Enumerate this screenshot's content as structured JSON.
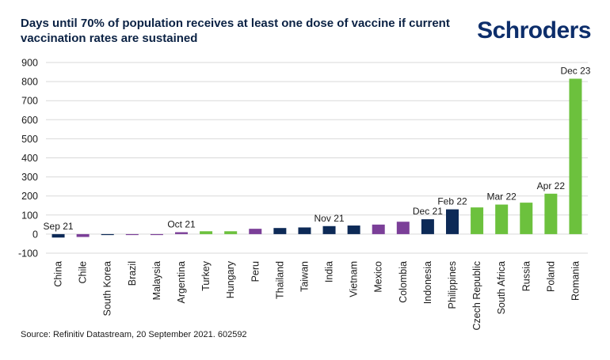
{
  "header": {
    "title": "Days until 70% of population receives at least one dose of vaccine if current vaccination rates are sustained",
    "logo": "Schroders"
  },
  "footer": {
    "source": "Source: Refinitiv Datastream, 20 September 2021. 602592"
  },
  "colors": {
    "navy": "#0d2a57",
    "purple": "#7b3f98",
    "green": "#6cc13d",
    "grid": "#d9d9d9"
  },
  "chart_data": {
    "type": "bar",
    "title": "Days until 70% of population receives at least one dose of vaccine if current vaccination rates are sustained",
    "xlabel": "",
    "ylabel": "",
    "ylim": [
      -100,
      900
    ],
    "yticks": [
      -100,
      0,
      100,
      200,
      300,
      400,
      500,
      600,
      700,
      800,
      900
    ],
    "grid": true,
    "categories": [
      "China",
      "Chile",
      "South Korea",
      "Brazil",
      "Malaysia",
      "Argentina",
      "Turkey",
      "Hungary",
      "Peru",
      "Thailand",
      "Taiwan",
      "India",
      "Vietnam",
      "Mexico",
      "Colombia",
      "Indonesia",
      "Philippines",
      "Czech Republic",
      "South Africa",
      "Russia",
      "Poland",
      "Romania"
    ],
    "values": [
      -18,
      -15,
      -5,
      -4,
      -3,
      10,
      15,
      15,
      28,
      32,
      35,
      42,
      45,
      50,
      65,
      78,
      130,
      140,
      155,
      165,
      212,
      815
    ],
    "bar_colors": [
      "navy",
      "purple",
      "navy",
      "purple",
      "purple",
      "purple",
      "green",
      "green",
      "purple",
      "navy",
      "navy",
      "navy",
      "navy",
      "purple",
      "purple",
      "navy",
      "navy",
      "green",
      "green",
      "green",
      "green",
      "green"
    ],
    "annotations": [
      {
        "category": "China",
        "label": "Sep 21"
      },
      {
        "category": "Argentina",
        "label": "Oct 21"
      },
      {
        "category": "India",
        "label": "Nov 21"
      },
      {
        "category": "Indonesia",
        "label": "Dec 21"
      },
      {
        "category": "Philippines",
        "label": "Feb 22"
      },
      {
        "category": "South Africa",
        "label": "Mar 22"
      },
      {
        "category": "Poland",
        "label": "Apr 22"
      },
      {
        "category": "Romania",
        "label": "Dec 23"
      }
    ]
  }
}
